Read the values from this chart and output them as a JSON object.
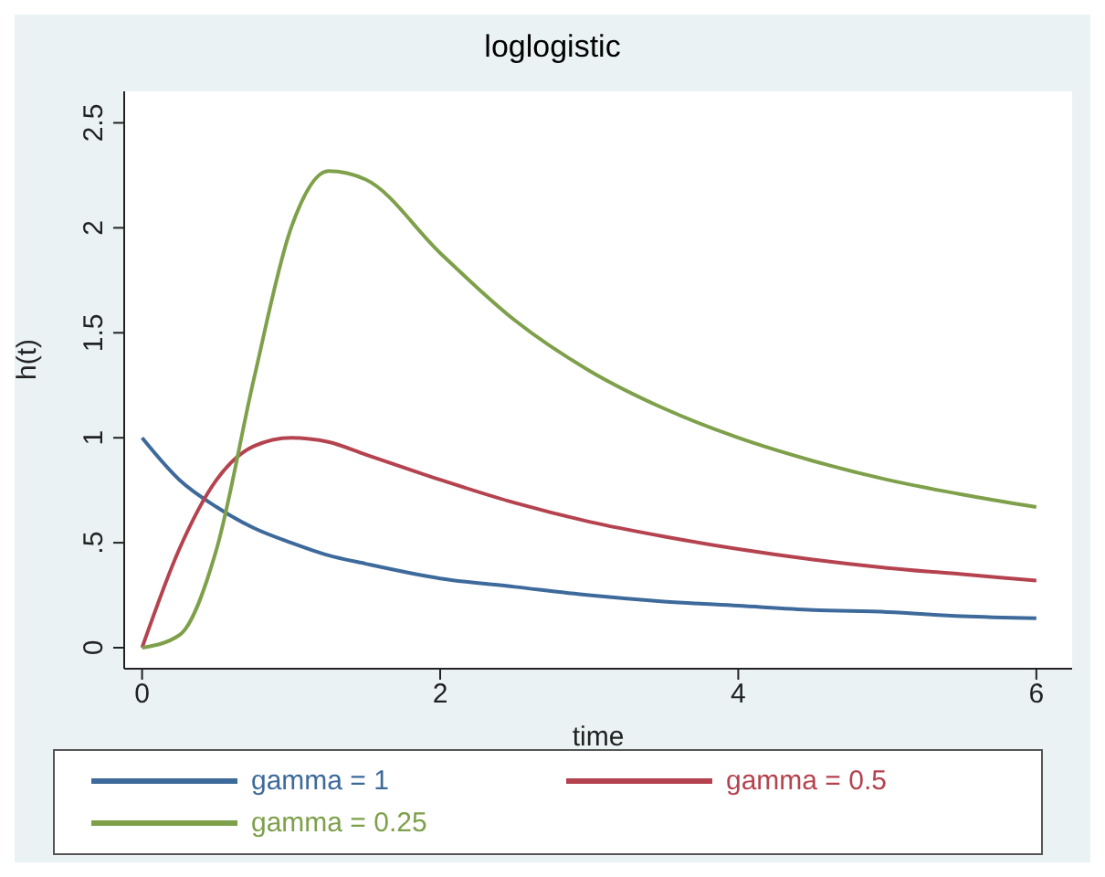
{
  "chart_data": {
    "type": "line",
    "title": "loglogistic",
    "xlabel": "time",
    "ylabel": "h(t)",
    "x": [
      0,
      0.25,
      0.5,
      0.75,
      1,
      1.25,
      1.5,
      2,
      2.5,
      3,
      3.5,
      4,
      4.5,
      5,
      5.5,
      6
    ],
    "series": [
      {
        "name": "gamma = 1",
        "color": "#3d6a9b",
        "values": [
          1,
          0.8,
          0.67,
          0.57,
          0.5,
          0.44,
          0.4,
          0.33,
          0.29,
          0.25,
          0.22,
          0.2,
          0.18,
          0.17,
          0.15,
          0.14
        ]
      },
      {
        "name": "gamma = 0.5",
        "color": "#b5434f",
        "values": [
          0,
          0.47,
          0.8,
          0.96,
          1,
          0.98,
          0.92,
          0.8,
          0.69,
          0.6,
          0.53,
          0.47,
          0.42,
          0.38,
          0.35,
          0.32
        ]
      },
      {
        "name": "gamma = 0.25",
        "color": "#7ea04a",
        "values": [
          0,
          0.06,
          0.47,
          1.28,
          2,
          2.27,
          2.23,
          1.88,
          1.56,
          1.32,
          1.14,
          1,
          0.89,
          0.8,
          0.73,
          0.67
        ]
      }
    ],
    "xlim": [
      -0.12,
      6.24
    ],
    "xticks": [
      0,
      2,
      4,
      6
    ],
    "ylim": [
      -0.1,
      2.65
    ],
    "yticks": [
      0,
      {
        "value": 0.5,
        "label": ".5"
      },
      1,
      1.5,
      2,
      2.5
    ],
    "grid": false,
    "legend": "bottom",
    "marker": "none",
    "line_style": "solid"
  }
}
